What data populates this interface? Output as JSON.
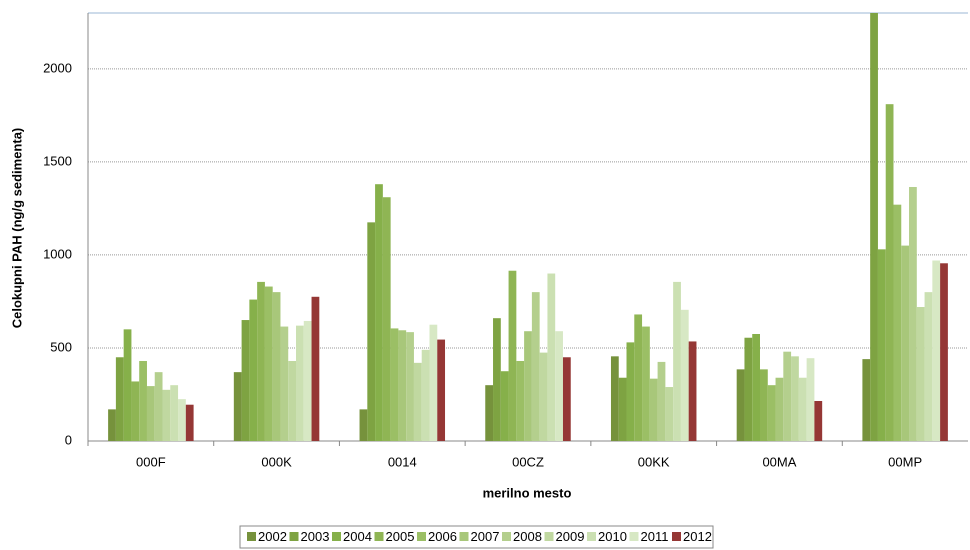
{
  "chart_data": {
    "type": "bar",
    "x_label": "merilno mesto",
    "y_label": "Celokupni PAH  (ng/g  sedimenta)",
    "categories": [
      "000F",
      "000K",
      "0014",
      "00CZ",
      "00KK",
      "00MA",
      "00MP"
    ],
    "ylim": [
      0,
      2300
    ],
    "yticks": [
      0,
      500,
      1000,
      1500,
      2000
    ],
    "grid": true,
    "legend": "bottom",
    "series": [
      {
        "name": "2002",
        "color": "#76923c",
        "values": [
          170,
          370,
          170,
          300,
          455,
          385,
          440
        ]
      },
      {
        "name": "2003",
        "color": "#7ea342",
        "values": [
          450,
          650,
          1175,
          660,
          340,
          555,
          2300
        ]
      },
      {
        "name": "2004",
        "color": "#86b04a",
        "values": [
          600,
          760,
          1380,
          375,
          530,
          575,
          1030
        ]
      },
      {
        "name": "2005",
        "color": "#8fb554",
        "values": [
          320,
          855,
          1310,
          915,
          680,
          385,
          1810
        ]
      },
      {
        "name": "2006",
        "color": "#9bbf65",
        "values": [
          430,
          830,
          605,
          430,
          615,
          300,
          1270
        ]
      },
      {
        "name": "2007",
        "color": "#a8c77a",
        "values": [
          295,
          800,
          595,
          590,
          335,
          340,
          1050
        ]
      },
      {
        "name": "2008",
        "color": "#b4cf8d",
        "values": [
          370,
          615,
          585,
          800,
          425,
          480,
          1365
        ]
      },
      {
        "name": "2009",
        "color": "#c0d8a0",
        "values": [
          275,
          430,
          420,
          475,
          290,
          455,
          720
        ]
      },
      {
        "name": "2010",
        "color": "#cbe0b2",
        "values": [
          300,
          620,
          490,
          900,
          855,
          340,
          800
        ]
      },
      {
        "name": "2011",
        "color": "#d7e8c4",
        "values": [
          225,
          645,
          625,
          590,
          705,
          445,
          970
        ]
      },
      {
        "name": "2012",
        "color": "#953735",
        "values": [
          195,
          775,
          545,
          450,
          535,
          215,
          955
        ]
      }
    ]
  }
}
